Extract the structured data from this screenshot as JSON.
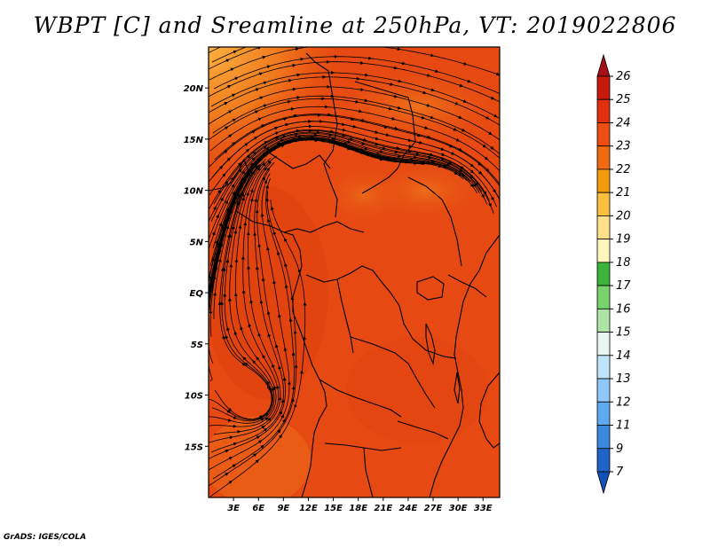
{
  "title": "WBPT [C] and Sreamline at 250hPa, VT: 2019022806",
  "credit": "GrADS: IGES/COLA",
  "map": {
    "lon_range": [
      0,
      35
    ],
    "lat_range": [
      -20,
      24
    ],
    "lon_ticks": [
      "3E",
      "6E",
      "9E",
      "12E",
      "15E",
      "18E",
      "21E",
      "24E",
      "27E",
      "30E",
      "33E"
    ],
    "lat_ticks": [
      "20N",
      "15N",
      "10N",
      "5N",
      "EQ",
      "5S",
      "10S",
      "15S"
    ],
    "field_colors": {
      "dominant": "#E64A12",
      "light": "#F07A1C",
      "lightest": "#FBB040",
      "dark": "#D8380E"
    }
  },
  "colorbar": {
    "labels": [
      "26",
      "25",
      "24",
      "23",
      "22",
      "21",
      "20",
      "19",
      "18",
      "17",
      "16",
      "15",
      "14",
      "13",
      "12",
      "11",
      "9",
      "7"
    ],
    "colors": [
      "#A50F15",
      "#C8190F",
      "#E03010",
      "#ED4E12",
      "#F06A10",
      "#F59A0C",
      "#FBBF40",
      "#FFE08A",
      "#FFF6BF",
      "#3CB43C",
      "#78D26E",
      "#AEE5A6",
      "#E7F7F2",
      "#BFE3FB",
      "#8FC8F5",
      "#5FA9EE",
      "#3C88E0",
      "#1F62C8",
      "#1050B8"
    ]
  }
}
